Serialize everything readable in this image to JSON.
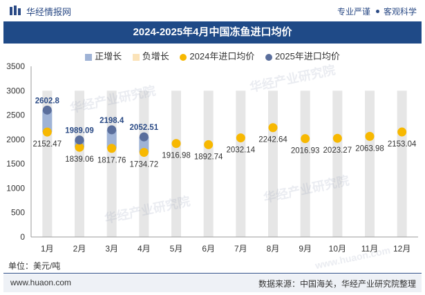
{
  "header": {
    "brand": "华经情报网",
    "right_a": "专业严谨",
    "right_b": "客观科学"
  },
  "title": "2024-2025年4月中国冻鱼进口均价",
  "legend": {
    "pos": "正增长",
    "neg": "负增长",
    "s2024": "2024年进口均价",
    "s2025": "2025年进口均价"
  },
  "unit": "单位：美元/吨",
  "footer": {
    "site": "www.huaon.com",
    "source": "数据来源：中国海关，华经产业研究院整理"
  },
  "watermarks": [
    "华经产业研究院",
    "华经产业研究院",
    "华经产业研究院",
    "华经产业研究院",
    "www.huaon.com"
  ],
  "colors": {
    "s2024": "#f7b801",
    "s2025": "#5a6e9c",
    "positive_bar": "#9fb3d6",
    "negative_bar": "#fbe3b9",
    "column_bg": "#e6e6e6",
    "title_bg": "#1f4a87"
  },
  "chart_data": {
    "type": "scatter",
    "categories": [
      "1月",
      "2月",
      "3月",
      "4月",
      "5月",
      "6月",
      "7月",
      "8月",
      "9月",
      "10月",
      "11月",
      "12月"
    ],
    "series": [
      {
        "name": "2024年进口均价",
        "values": [
          2152.47,
          1839.06,
          1817.76,
          1734.72,
          1916.98,
          1892.74,
          2032.14,
          2242.64,
          2016.93,
          2023.27,
          2063.98,
          2153.04
        ]
      },
      {
        "name": "2025年进口均价",
        "values": [
          2602.8,
          1989.09,
          2198.4,
          2052.51,
          null,
          null,
          null,
          null,
          null,
          null,
          null,
          null
        ]
      }
    ],
    "ylim": [
      0,
      3500
    ],
    "yticks": [
      0,
      500,
      1000,
      1500,
      2000,
      2500,
      3000,
      3500
    ],
    "ylabel": "",
    "xlabel": "",
    "grid": false,
    "legend_position": "top"
  }
}
